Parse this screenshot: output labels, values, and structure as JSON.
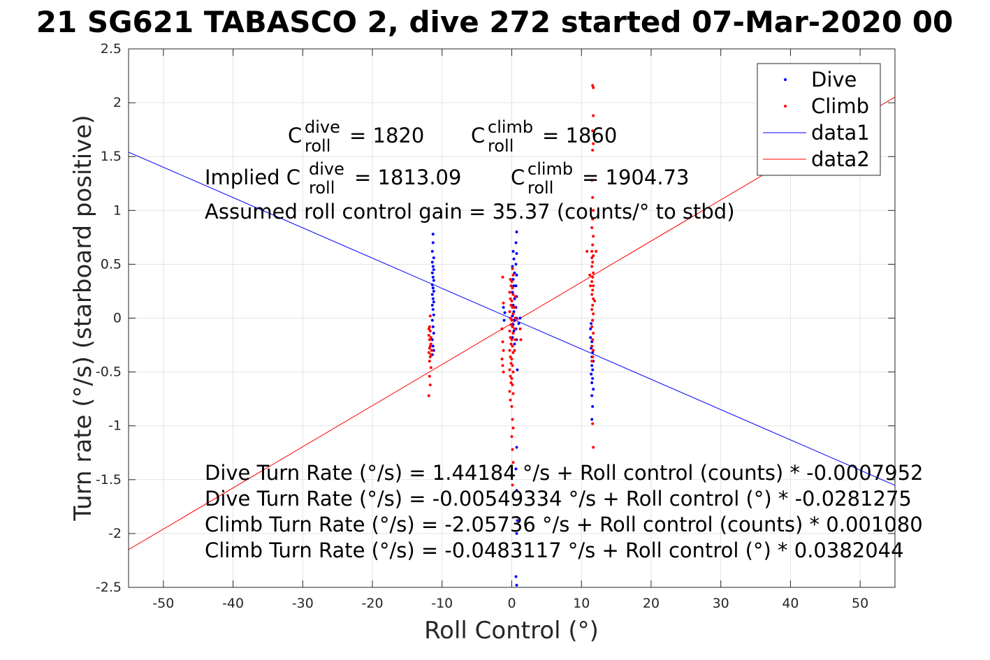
{
  "chart_data": {
    "type": "scatter",
    "title": "21 SG621 TABASCO 2, dive 272 started 07-Mar-2020 00",
    "xlabel": "Roll Control (°)",
    "ylabel": "Turn rate (°/s) (starboard positive)",
    "xlim": [
      -55,
      55
    ],
    "ylim": [
      -2.5,
      2.5
    ],
    "xticks": [
      "-50",
      "-40",
      "-30",
      "-20",
      "-10",
      "0",
      "10",
      "20",
      "30",
      "40",
      "50"
    ],
    "yticks": [
      "2.5",
      "2",
      "1.5",
      "1",
      "0.5",
      "0",
      "-0.5",
      "-1",
      "-1.5",
      "-2",
      "-2.5"
    ],
    "grid": true,
    "legend_position": "top-right",
    "legend": [
      {
        "label": "Dive",
        "color": "#0000ff",
        "marker": "dot"
      },
      {
        "label": "Climb",
        "color": "#ff0000",
        "marker": "dot"
      },
      {
        "label": "data1",
        "color": "#0000ff",
        "marker": "line"
      },
      {
        "label": "data2",
        "color": "#ff0000",
        "marker": "line"
      }
    ],
    "fit_lines": [
      {
        "name": "data1",
        "color": "#0000ff",
        "slope": -0.0281275,
        "intercept": -0.00549334
      },
      {
        "name": "data2",
        "color": "#ff0000",
        "slope": 0.0382044,
        "intercept": -0.0483117
      }
    ],
    "series": [
      {
        "name": "Dive",
        "color": "#0000ff",
        "points": [
          [
            -11.3,
            0.78
          ],
          [
            -11.3,
            0.7
          ],
          [
            -11.4,
            0.62
          ],
          [
            -11.2,
            0.56
          ],
          [
            -11.4,
            0.52
          ],
          [
            -11.3,
            0.48
          ],
          [
            -11.2,
            0.45
          ],
          [
            -11.4,
            0.42
          ],
          [
            -11.3,
            0.38
          ],
          [
            -11.2,
            0.35
          ],
          [
            -11.4,
            0.31
          ],
          [
            -11.3,
            0.28
          ],
          [
            -11.2,
            0.25
          ],
          [
            -11.4,
            0.22
          ],
          [
            -11.3,
            0.18
          ],
          [
            -11.2,
            0.15
          ],
          [
            -11.4,
            0.12
          ],
          [
            -11.3,
            0.08
          ],
          [
            -11.2,
            0.03
          ],
          [
            -11.4,
            -0.02
          ],
          [
            -11.3,
            -0.08
          ],
          [
            -11.2,
            -0.14
          ],
          [
            -11.4,
            -0.2
          ],
          [
            -11.3,
            -0.26
          ],
          [
            -11.2,
            -0.3
          ],
          [
            -11.4,
            -0.34
          ],
          [
            0.2,
            0.62
          ],
          [
            0.3,
            0.55
          ],
          [
            0.1,
            0.48
          ],
          [
            0.4,
            0.42
          ],
          [
            0.2,
            0.36
          ],
          [
            0.3,
            0.3
          ],
          [
            0.1,
            0.24
          ],
          [
            0.4,
            0.18
          ],
          [
            0.2,
            0.12
          ],
          [
            0.3,
            0.06
          ],
          [
            0.1,
            0.02
          ],
          [
            0.4,
            -0.02
          ],
          [
            0.2,
            -0.06
          ],
          [
            0.3,
            -0.12
          ],
          [
            0.1,
            -0.18
          ],
          [
            0.4,
            -0.24
          ],
          [
            0.7,
            0.8
          ],
          [
            0.6,
            0.7
          ],
          [
            0.7,
            0.6
          ],
          [
            0.6,
            0.5
          ],
          [
            0.7,
            0.4
          ],
          [
            0.6,
            0.3
          ],
          [
            0.7,
            0.2
          ],
          [
            0.6,
            0.1
          ],
          [
            0.7,
            0.0
          ],
          [
            0.6,
            -0.1
          ],
          [
            0.7,
            -0.2
          ],
          [
            0.8,
            -0.48
          ],
          [
            0.7,
            -1.2
          ],
          [
            0.6,
            -1.4
          ],
          [
            0.7,
            -1.6
          ],
          [
            0.8,
            -1.88
          ],
          [
            0.7,
            -2.0
          ],
          [
            0.6,
            -2.4
          ],
          [
            0.7,
            -2.48
          ],
          [
            -1.2,
            0.1
          ],
          [
            -1.0,
            0.05
          ],
          [
            -1.1,
            -0.02
          ],
          [
            1.2,
            0.0
          ],
          [
            1.0,
            -0.05
          ],
          [
            11.3,
            -0.18
          ],
          [
            11.5,
            -0.22
          ],
          [
            11.4,
            -0.28
          ],
          [
            11.6,
            -0.32
          ],
          [
            11.5,
            -0.36
          ],
          [
            11.7,
            -0.4
          ],
          [
            11.5,
            -0.44
          ],
          [
            11.6,
            -0.48
          ],
          [
            11.4,
            -0.52
          ],
          [
            11.6,
            -0.56
          ],
          [
            11.5,
            -0.6
          ],
          [
            11.7,
            -0.66
          ],
          [
            11.5,
            -0.72
          ],
          [
            11.6,
            -0.82
          ],
          [
            11.5,
            -0.94
          ],
          [
            11.3,
            -0.1
          ],
          [
            11.4,
            -0.05
          ],
          [
            11.6,
            -0.02
          ]
        ]
      },
      {
        "name": "Climb",
        "color": "#ff0000",
        "points": [
          [
            -11.8,
            -0.08
          ],
          [
            -11.7,
            -0.12
          ],
          [
            -11.9,
            -0.16
          ],
          [
            -11.8,
            -0.2
          ],
          [
            -11.6,
            -0.24
          ],
          [
            -11.8,
            -0.28
          ],
          [
            -11.9,
            -0.32
          ],
          [
            -11.7,
            -0.36
          ],
          [
            -11.8,
            -0.4
          ],
          [
            -11.6,
            -0.46
          ],
          [
            -11.8,
            -0.54
          ],
          [
            -11.7,
            -0.62
          ],
          [
            -11.9,
            -0.72
          ],
          [
            -11.6,
            -0.18
          ],
          [
            -11.7,
            -0.26
          ],
          [
            -11.9,
            -0.1
          ],
          [
            -11.5,
            -0.3
          ],
          [
            -11.6,
            -0.34
          ],
          [
            -11.7,
            0.02
          ],
          [
            -0.2,
            0.36
          ],
          [
            -0.1,
            0.3
          ],
          [
            -0.3,
            0.24
          ],
          [
            -0.2,
            0.18
          ],
          [
            -0.1,
            0.12
          ],
          [
            -0.3,
            0.06
          ],
          [
            -0.2,
            0.0
          ],
          [
            -0.1,
            -0.06
          ],
          [
            -0.3,
            -0.12
          ],
          [
            -0.2,
            -0.18
          ],
          [
            -0.1,
            -0.24
          ],
          [
            -0.3,
            -0.3
          ],
          [
            -0.2,
            -0.36
          ],
          [
            -0.1,
            -0.42
          ],
          [
            -0.3,
            -0.48
          ],
          [
            -0.2,
            -0.54
          ],
          [
            -0.1,
            -0.6
          ],
          [
            -0.3,
            -0.68
          ],
          [
            -0.2,
            -0.76
          ],
          [
            0.1,
            0.46
          ],
          [
            0.2,
            0.4
          ],
          [
            0.0,
            0.34
          ],
          [
            0.1,
            0.28
          ],
          [
            0.2,
            0.22
          ],
          [
            0.0,
            0.16
          ],
          [
            0.1,
            0.1
          ],
          [
            0.2,
            0.04
          ],
          [
            0.0,
            -0.02
          ],
          [
            0.1,
            -0.08
          ],
          [
            0.2,
            -0.14
          ],
          [
            0.0,
            -0.2
          ],
          [
            0.1,
            -0.26
          ],
          [
            0.2,
            -0.32
          ],
          [
            0.0,
            -0.38
          ],
          [
            0.1,
            -0.44
          ],
          [
            0.2,
            -0.5
          ],
          [
            0.0,
            -0.56
          ],
          [
            0.1,
            -0.62
          ],
          [
            0.2,
            -0.7
          ],
          [
            0.0,
            -0.82
          ],
          [
            0.1,
            -0.94
          ],
          [
            0.2,
            -1.02
          ],
          [
            0.0,
            -1.1
          ],
          [
            0.1,
            -1.22
          ],
          [
            0.2,
            -1.34
          ],
          [
            0.0,
            -1.46
          ],
          [
            0.1,
            -1.55
          ],
          [
            0.5,
            0.2
          ],
          [
            0.4,
            0.1
          ],
          [
            0.5,
            0.0
          ],
          [
            0.4,
            -0.1
          ],
          [
            0.5,
            -0.2
          ],
          [
            0.4,
            -0.3
          ],
          [
            -1.3,
            0.38
          ],
          [
            -1.2,
            0.14
          ],
          [
            -1.4,
            -0.1
          ],
          [
            -1.3,
            -0.22
          ],
          [
            -1.2,
            -0.3
          ],
          [
            -1.4,
            -0.38
          ],
          [
            -1.3,
            -0.44
          ],
          [
            -1.2,
            -0.5
          ],
          [
            1.2,
            -0.1
          ],
          [
            1.3,
            -0.2
          ],
          [
            11.6,
            2.16
          ],
          [
            11.7,
            2.14
          ],
          [
            11.7,
            1.88
          ],
          [
            11.6,
            1.74
          ],
          [
            11.7,
            1.62
          ],
          [
            11.6,
            1.56
          ],
          [
            11.5,
            1.28
          ],
          [
            11.6,
            1.12
          ],
          [
            11.7,
            1.0
          ],
          [
            11.6,
            0.92
          ],
          [
            11.5,
            0.84
          ],
          [
            11.7,
            0.76
          ],
          [
            11.6,
            0.68
          ],
          [
            11.5,
            0.62
          ],
          [
            11.7,
            0.58
          ],
          [
            11.6,
            0.52
          ],
          [
            11.5,
            0.48
          ],
          [
            11.7,
            0.42
          ],
          [
            11.6,
            0.38
          ],
          [
            11.5,
            0.34
          ],
          [
            11.7,
            0.3
          ],
          [
            11.6,
            0.26
          ],
          [
            11.5,
            0.22
          ],
          [
            11.7,
            0.18
          ],
          [
            11.6,
            0.12
          ],
          [
            11.5,
            0.08
          ],
          [
            11.7,
            0.04
          ],
          [
            11.6,
            -0.02
          ],
          [
            11.5,
            -0.08
          ],
          [
            11.7,
            -0.14
          ],
          [
            11.6,
            -0.2
          ],
          [
            11.5,
            -0.26
          ],
          [
            11.7,
            -0.3
          ],
          [
            11.6,
            -0.36
          ],
          [
            11.5,
            -0.4
          ],
          [
            11.6,
            -0.98
          ],
          [
            11.7,
            -1.2
          ],
          [
            11.5,
            0.56
          ],
          [
            11.2,
            0.4
          ],
          [
            11.3,
            0.3
          ],
          [
            10.8,
            0.62
          ],
          [
            12.1,
            0.62
          ],
          [
            11.9,
            0.16
          ]
        ]
      }
    ],
    "annotations": {
      "c_dive_label": "C",
      "c_dive_sup": "dive",
      "c_dive_sub": "roll",
      "c_dive_value": "= 1820",
      "c_climb_label": "C",
      "c_climb_sup": "climb",
      "c_climb_sub": "roll",
      "c_climb_value": "= 1860",
      "implied_prefix": "Implied C",
      "implied_dive_sup": "dive",
      "implied_dive_sub": "roll",
      "implied_dive_value": "= 1813.09",
      "implied_climb_label": "C",
      "implied_climb_sup": "climb",
      "implied_climb_sub": "roll",
      "implied_climb_value": "= 1904.73",
      "gain": "Assumed roll control gain = 35.37 (counts/° to stbd)",
      "eq1": "Dive Turn Rate (°/s) = 1.44184 °/s + Roll control (counts) * -0.0007952",
      "eq2": "Dive Turn Rate (°/s) = -0.00549334 °/s + Roll control (°) * -0.0281275",
      "eq3": "Climb Turn Rate (°/s) = -2.05736 °/s + Roll control (counts) * 0.001080",
      "eq4": "Climb Turn Rate (°/s) = -0.0483117 °/s + Roll control (°) * 0.0382044"
    }
  }
}
